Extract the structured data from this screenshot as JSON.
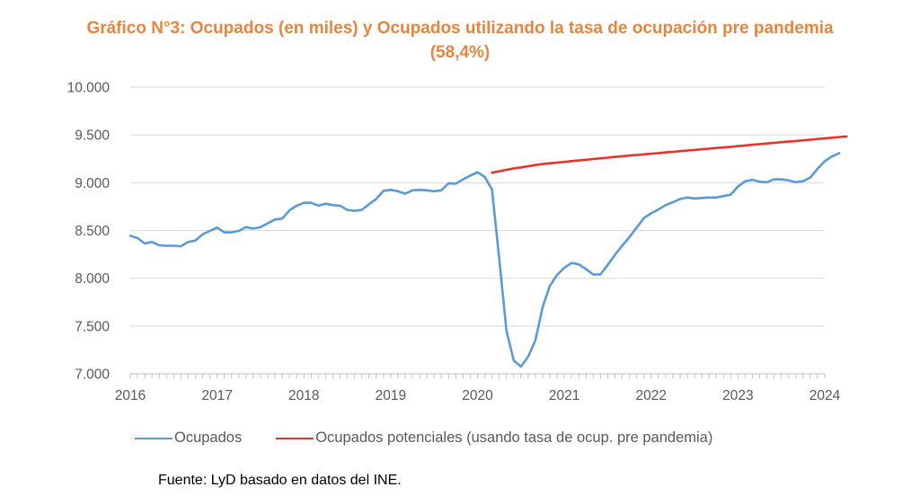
{
  "chart_data": {
    "type": "line",
    "title": "Gráfico N°3: Ocupados (en miles) y Ocupados utilizando la tasa de ocupación pre pandemia",
    "subtitle": "(58,4%)",
    "xlabel": "",
    "ylabel": "",
    "ylim": [
      7000,
      10000
    ],
    "yticks": [
      "7.000",
      "7.500",
      "8.000",
      "8.500",
      "9.000",
      "9.500",
      "10.000"
    ],
    "ytick_values": [
      7000,
      7500,
      8000,
      8500,
      9000,
      9500,
      10000
    ],
    "xticks": [
      "2016",
      "2017",
      "2018",
      "2019",
      "2020",
      "2021",
      "2022",
      "2023",
      "2024"
    ],
    "xtick_values": [
      2016,
      2017,
      2018,
      2019,
      2020,
      2021,
      2022,
      2023,
      2024
    ],
    "xlim": [
      2016,
      2024
    ],
    "grid": true,
    "legend_position": "bottom",
    "series": [
      {
        "name": "Ocupados",
        "color": "#5B9BD5",
        "start": 2016.0,
        "step_months": 1,
        "values": [
          8445,
          8420,
          8365,
          8380,
          8345,
          8340,
          8340,
          8335,
          8380,
          8395,
          8460,
          8495,
          8530,
          8480,
          8480,
          8495,
          8535,
          8520,
          8535,
          8575,
          8615,
          8625,
          8710,
          8760,
          8790,
          8790,
          8760,
          8780,
          8765,
          8760,
          8715,
          8705,
          8715,
          8775,
          8830,
          8915,
          8925,
          8910,
          8885,
          8920,
          8925,
          8920,
          8910,
          8920,
          8995,
          8990,
          9035,
          9075,
          9110,
          9060,
          8930,
          8200,
          7450,
          7140,
          7075,
          7180,
          7350,
          7700,
          7920,
          8035,
          8110,
          8160,
          8145,
          8095,
          8040,
          8040,
          8140,
          8245,
          8340,
          8430,
          8530,
          8630,
          8680,
          8720,
          8765,
          8795,
          8830,
          8845,
          8835,
          8840,
          8845,
          8845,
          8860,
          8875,
          8960,
          9015,
          9030,
          9010,
          9005,
          9035,
          9035,
          9025,
          9005,
          9015,
          9055,
          9145,
          9225,
          9275,
          9310
        ]
      },
      {
        "name": "Ocupados potenciales (usando tasa de ocup. pre pandemia)",
        "color": "#E8322C",
        "start": 2020.1667,
        "step_months": 1,
        "values": [
          9105,
          9120,
          9135,
          9150,
          9160,
          9172,
          9185,
          9195,
          9203,
          9210,
          9218,
          9226,
          9233,
          9240,
          9248,
          9255,
          9262,
          9270,
          9277,
          9284,
          9290,
          9297,
          9304,
          9310,
          9317,
          9323,
          9330,
          9337,
          9343,
          9350,
          9356,
          9363,
          9370,
          9376,
          9383,
          9390,
          9397,
          9404,
          9410,
          9417,
          9424,
          9430,
          9437,
          9443,
          9450,
          9457,
          9464,
          9471,
          9478,
          9485
        ]
      }
    ]
  },
  "legend": {
    "items": [
      {
        "label": "Ocupados",
        "color": "#5B9BD5"
      },
      {
        "label": "Ocupados potenciales (usando tasa de ocup. pre pandemia)",
        "color": "#E8322C"
      }
    ]
  },
  "source": "Fuente: LyD basado en datos del INE.",
  "title_line1": "Gráfico N°3: Ocupados (en miles) y Ocupados utilizando la tasa de ocupación pre pandemia",
  "title_line2": "(58,4%)"
}
